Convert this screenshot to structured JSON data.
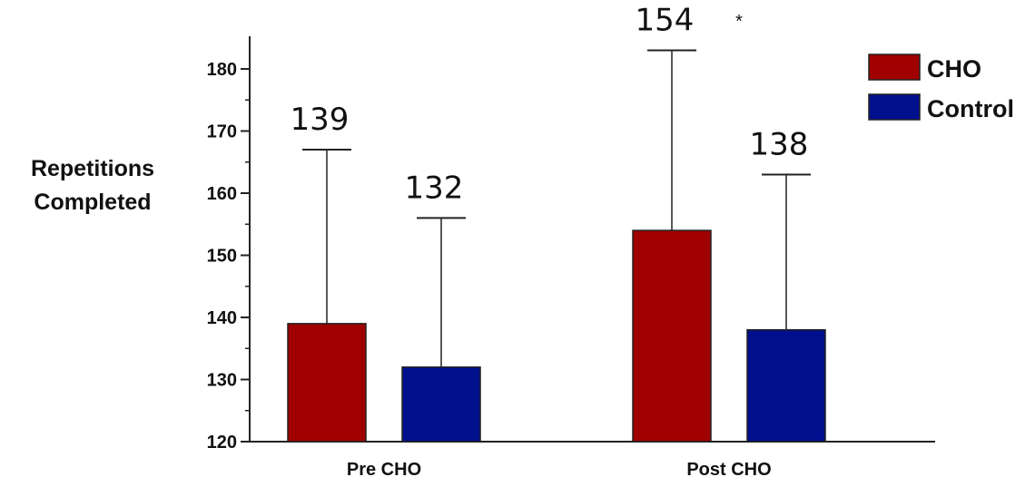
{
  "chart_data": {
    "type": "bar",
    "ylabel_lines": [
      "Repetitions",
      "Completed"
    ],
    "categories": [
      "Pre CHO",
      "Post CHO"
    ],
    "ylim": [
      120,
      185
    ],
    "yticks": [
      120,
      130,
      140,
      150,
      160,
      170,
      180
    ],
    "series": [
      {
        "name": "CHO",
        "values": [
          139,
          154
        ],
        "errors": [
          28,
          29
        ],
        "color": "#a00000"
      },
      {
        "name": "Control",
        "values": [
          132,
          138
        ],
        "errors": [
          24,
          25
        ],
        "color": "#000f8c"
      }
    ],
    "data_labels": [
      [
        "139",
        "154"
      ],
      [
        "132",
        "138"
      ]
    ],
    "annotation": "*",
    "legend_position": "top-right",
    "grid": false
  }
}
